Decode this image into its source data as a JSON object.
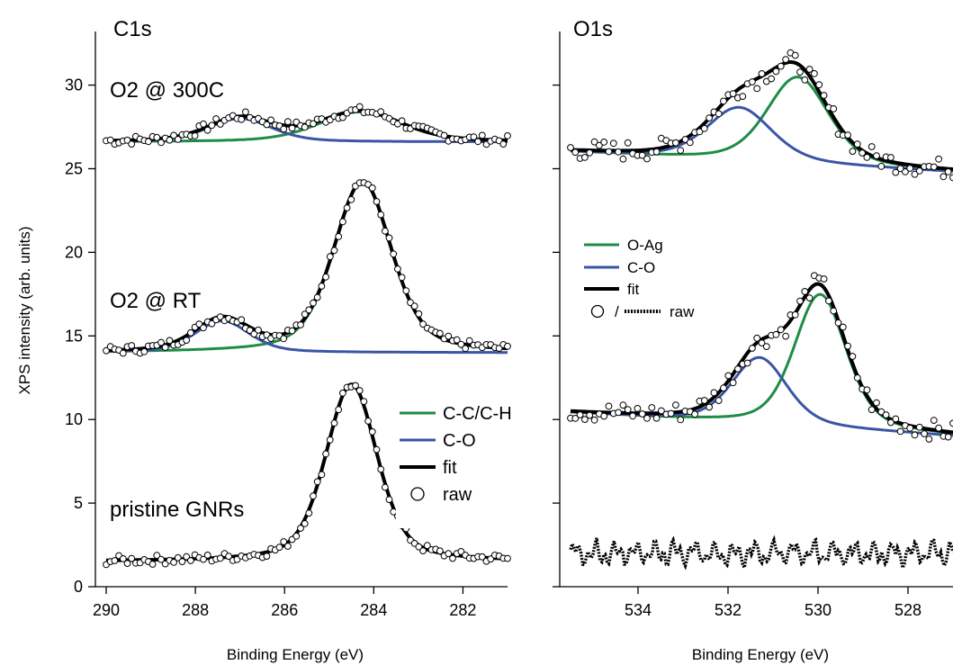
{
  "chart_data": [
    {
      "panel": "C1s",
      "type": "line",
      "title": "C1s",
      "xlabel": "Binding Energy (eV)",
      "ylabel": "XPS intensity (arb. units)",
      "xlim": [
        290,
        281
      ],
      "ylim": [
        0,
        32
      ],
      "x_ticks": [
        "290",
        "288",
        "286",
        "284",
        "282"
      ],
      "y_ticks": [
        "0",
        "5",
        "10",
        "15",
        "20",
        "25",
        "30"
      ],
      "annotations": [
        "O2 @ 300C",
        "O2 @ RT",
        "pristine GNRs"
      ],
      "legend": {
        "position": "right-center",
        "entries": [
          "C-C/C-H",
          "C-O",
          "fit",
          "raw"
        ]
      },
      "spectra": [
        {
          "name": "O2 @ 300C",
          "baseline": 26.6,
          "peaks": [
            {
              "component": "C-C/C-H",
              "center": 284.3,
              "height": 1.8,
              "width": 1.3
            },
            {
              "component": "C-O",
              "center": 287.0,
              "height": 1.4,
              "width": 1.0
            }
          ]
        },
        {
          "name": "O2 @ RT",
          "baseline": 14.0,
          "peaks": [
            {
              "component": "C-C/C-H",
              "center": 284.25,
              "height": 10.2,
              "width": 0.9
            },
            {
              "component": "C-O",
              "center": 287.4,
              "height": 1.9,
              "width": 0.85
            }
          ]
        },
        {
          "name": "pristine GNRs",
          "baseline": 1.5,
          "peaks": [
            {
              "component": "C-C/C-H",
              "center": 284.5,
              "height": 10.6,
              "width": 0.8
            }
          ]
        }
      ]
    },
    {
      "panel": "O1s",
      "type": "line",
      "title": "O1s",
      "xlabel": "Binding Energy (eV)",
      "xlim": [
        535.5,
        527
      ],
      "ylim": [
        0,
        32
      ],
      "x_ticks": [
        "534",
        "532",
        "530",
        "528"
      ],
      "legend": {
        "position": "left-center",
        "entries": [
          "O-Ag",
          "C-O",
          "fit",
          "raw"
        ],
        "raw_prefix": "/"
      },
      "spectra": [
        {
          "name": "O2 @ 300C",
          "baseline": 26.0,
          "baseline_end": 24.8,
          "peaks": [
            {
              "component": "O-Ag",
              "center": 530.45,
              "height": 5.2,
              "width": 0.95
            },
            {
              "component": "C-O",
              "center": 531.75,
              "height": 3.2,
              "width": 1.0
            }
          ]
        },
        {
          "name": "O2 @ RT",
          "baseline": 10.4,
          "baseline_end": 9.0,
          "peaks": [
            {
              "component": "O-Ag",
              "center": 529.95,
              "height": 8.0,
              "width": 0.8
            },
            {
              "component": "C-O",
              "center": 531.3,
              "height": 4.0,
              "width": 0.85
            }
          ]
        },
        {
          "name": "pristine GNRs",
          "baseline": 2.0,
          "raw_only": true
        }
      ]
    }
  ],
  "colors": {
    "c_c_ch": "#1e8c46",
    "c_o": "#3b55a6",
    "o_ag": "#1e8c46",
    "fit": "#000000"
  }
}
